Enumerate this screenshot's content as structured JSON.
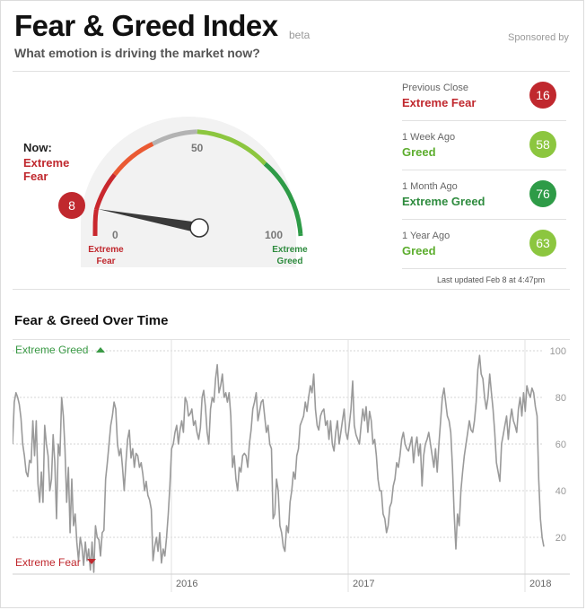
{
  "header": {
    "title": "Fear & Greed Index",
    "beta": "beta",
    "sponsored": "Sponsored by",
    "subtitle": "What emotion is driving the market now?"
  },
  "now": {
    "label": "Now:",
    "status": "Extreme Fear",
    "value": 8
  },
  "gauge": {
    "tick_0": "0",
    "tick_50": "50",
    "tick_100": "100",
    "low_label_1": "Extreme",
    "low_label_2": "Fear",
    "high_label_1": "Extreme",
    "high_label_2": "Greed",
    "value": "8"
  },
  "history": [
    {
      "label": "Previous Close",
      "status": "Extreme Fear",
      "value": "16",
      "color": "#c0282e",
      "dot": "#c0282e"
    },
    {
      "label": "1 Week Ago",
      "status": "Greed",
      "value": "58",
      "color": "#5cad2d",
      "dot": "#8cc63f"
    },
    {
      "label": "1 Month Ago",
      "status": "Extreme Greed",
      "value": "76",
      "color": "#2e8b3e",
      "dot": "#2e9b47"
    },
    {
      "label": "1 Year Ago",
      "status": "Greed",
      "value": "63",
      "color": "#5cad2d",
      "dot": "#8cc63f"
    }
  ],
  "last_updated": "Last updated Feb 8 at 4:47pm",
  "colors": {
    "fear": "#c0282e",
    "greed": "#3a9a45",
    "line": "#9a9a9a"
  },
  "chart_data": {
    "type": "line",
    "title": "Fear & Greed Over Time",
    "ylim": [
      0,
      100
    ],
    "y_ticks": [
      "100",
      "80",
      "60",
      "40",
      "20"
    ],
    "x_tick_labels": [
      "2016",
      "2017",
      "2018"
    ],
    "top_label": "Extreme Greed",
    "bottom_label": "Extreme Fear",
    "series": [
      {
        "values": [
          60,
          78,
          82,
          80,
          77,
          71,
          60,
          55,
          48,
          46,
          53,
          52,
          70,
          55,
          70,
          43,
          35,
          48,
          35,
          68,
          60,
          55,
          40,
          45,
          64,
          52,
          28,
          60,
          55,
          80,
          72,
          58,
          35,
          50,
          22,
          45,
          25,
          30,
          18,
          10,
          20,
          16,
          8,
          18,
          10,
          15,
          6,
          18,
          5,
          25,
          20,
          19,
          12,
          22,
          23,
          45,
          52,
          60,
          68,
          72,
          78,
          75,
          60,
          55,
          58,
          50,
          40,
          52,
          62,
          66,
          54,
          58,
          50,
          56,
          55,
          50,
          52,
          47,
          40,
          44,
          38,
          36,
          32,
          10,
          16,
          20,
          14,
          22,
          9,
          15,
          12,
          20,
          30,
          42,
          58,
          60,
          65,
          68,
          60,
          66,
          70,
          65,
          80,
          78,
          72,
          73,
          75,
          68,
          70,
          65,
          62,
          67,
          80,
          83,
          76,
          65,
          60,
          75,
          80,
          78,
          88,
          94,
          82,
          85,
          90,
          80,
          82,
          78,
          82,
          72,
          50,
          55,
          45,
          40,
          50,
          48,
          55,
          56,
          55,
          50,
          60,
          66,
          75,
          78,
          82,
          70,
          74,
          78,
          79,
          72,
          65,
          68,
          60,
          58,
          28,
          30,
          45,
          40,
          25,
          22,
          16,
          14,
          25,
          22,
          35,
          40,
          48,
          45,
          55,
          58,
          68,
          70,
          72,
          78,
          74,
          80,
          85,
          82,
          90,
          75,
          68,
          66,
          72,
          74,
          75,
          68,
          70,
          62,
          70,
          60,
          57,
          65,
          70,
          60,
          65,
          70,
          75,
          65,
          62,
          68,
          75,
          87,
          68,
          64,
          62,
          60,
          68,
          75,
          70,
          76,
          65,
          74,
          70,
          60,
          62,
          55,
          45,
          40,
          40,
          30,
          28,
          22,
          25,
          33,
          35,
          42,
          45,
          52,
          50,
          55,
          62,
          65,
          60,
          58,
          57,
          60,
          63,
          52,
          59,
          63,
          55,
          60,
          42,
          55,
          60,
          62,
          65,
          60,
          55,
          50,
          58,
          48,
          60,
          70,
          80,
          84,
          78,
          72,
          70,
          65,
          50,
          30,
          15,
          30,
          25,
          40,
          48,
          55,
          60,
          65,
          70,
          66,
          65,
          70,
          78,
          92,
          98,
          90,
          88,
          80,
          75,
          80,
          90,
          82,
          75,
          65,
          52,
          48,
          44,
          60,
          64,
          68,
          72,
          62,
          70,
          75,
          70,
          68,
          65,
          75,
          80,
          72,
          82,
          74,
          85,
          82,
          80,
          84,
          82,
          76,
          72,
          45,
          28,
          20,
          16
        ]
      }
    ]
  }
}
